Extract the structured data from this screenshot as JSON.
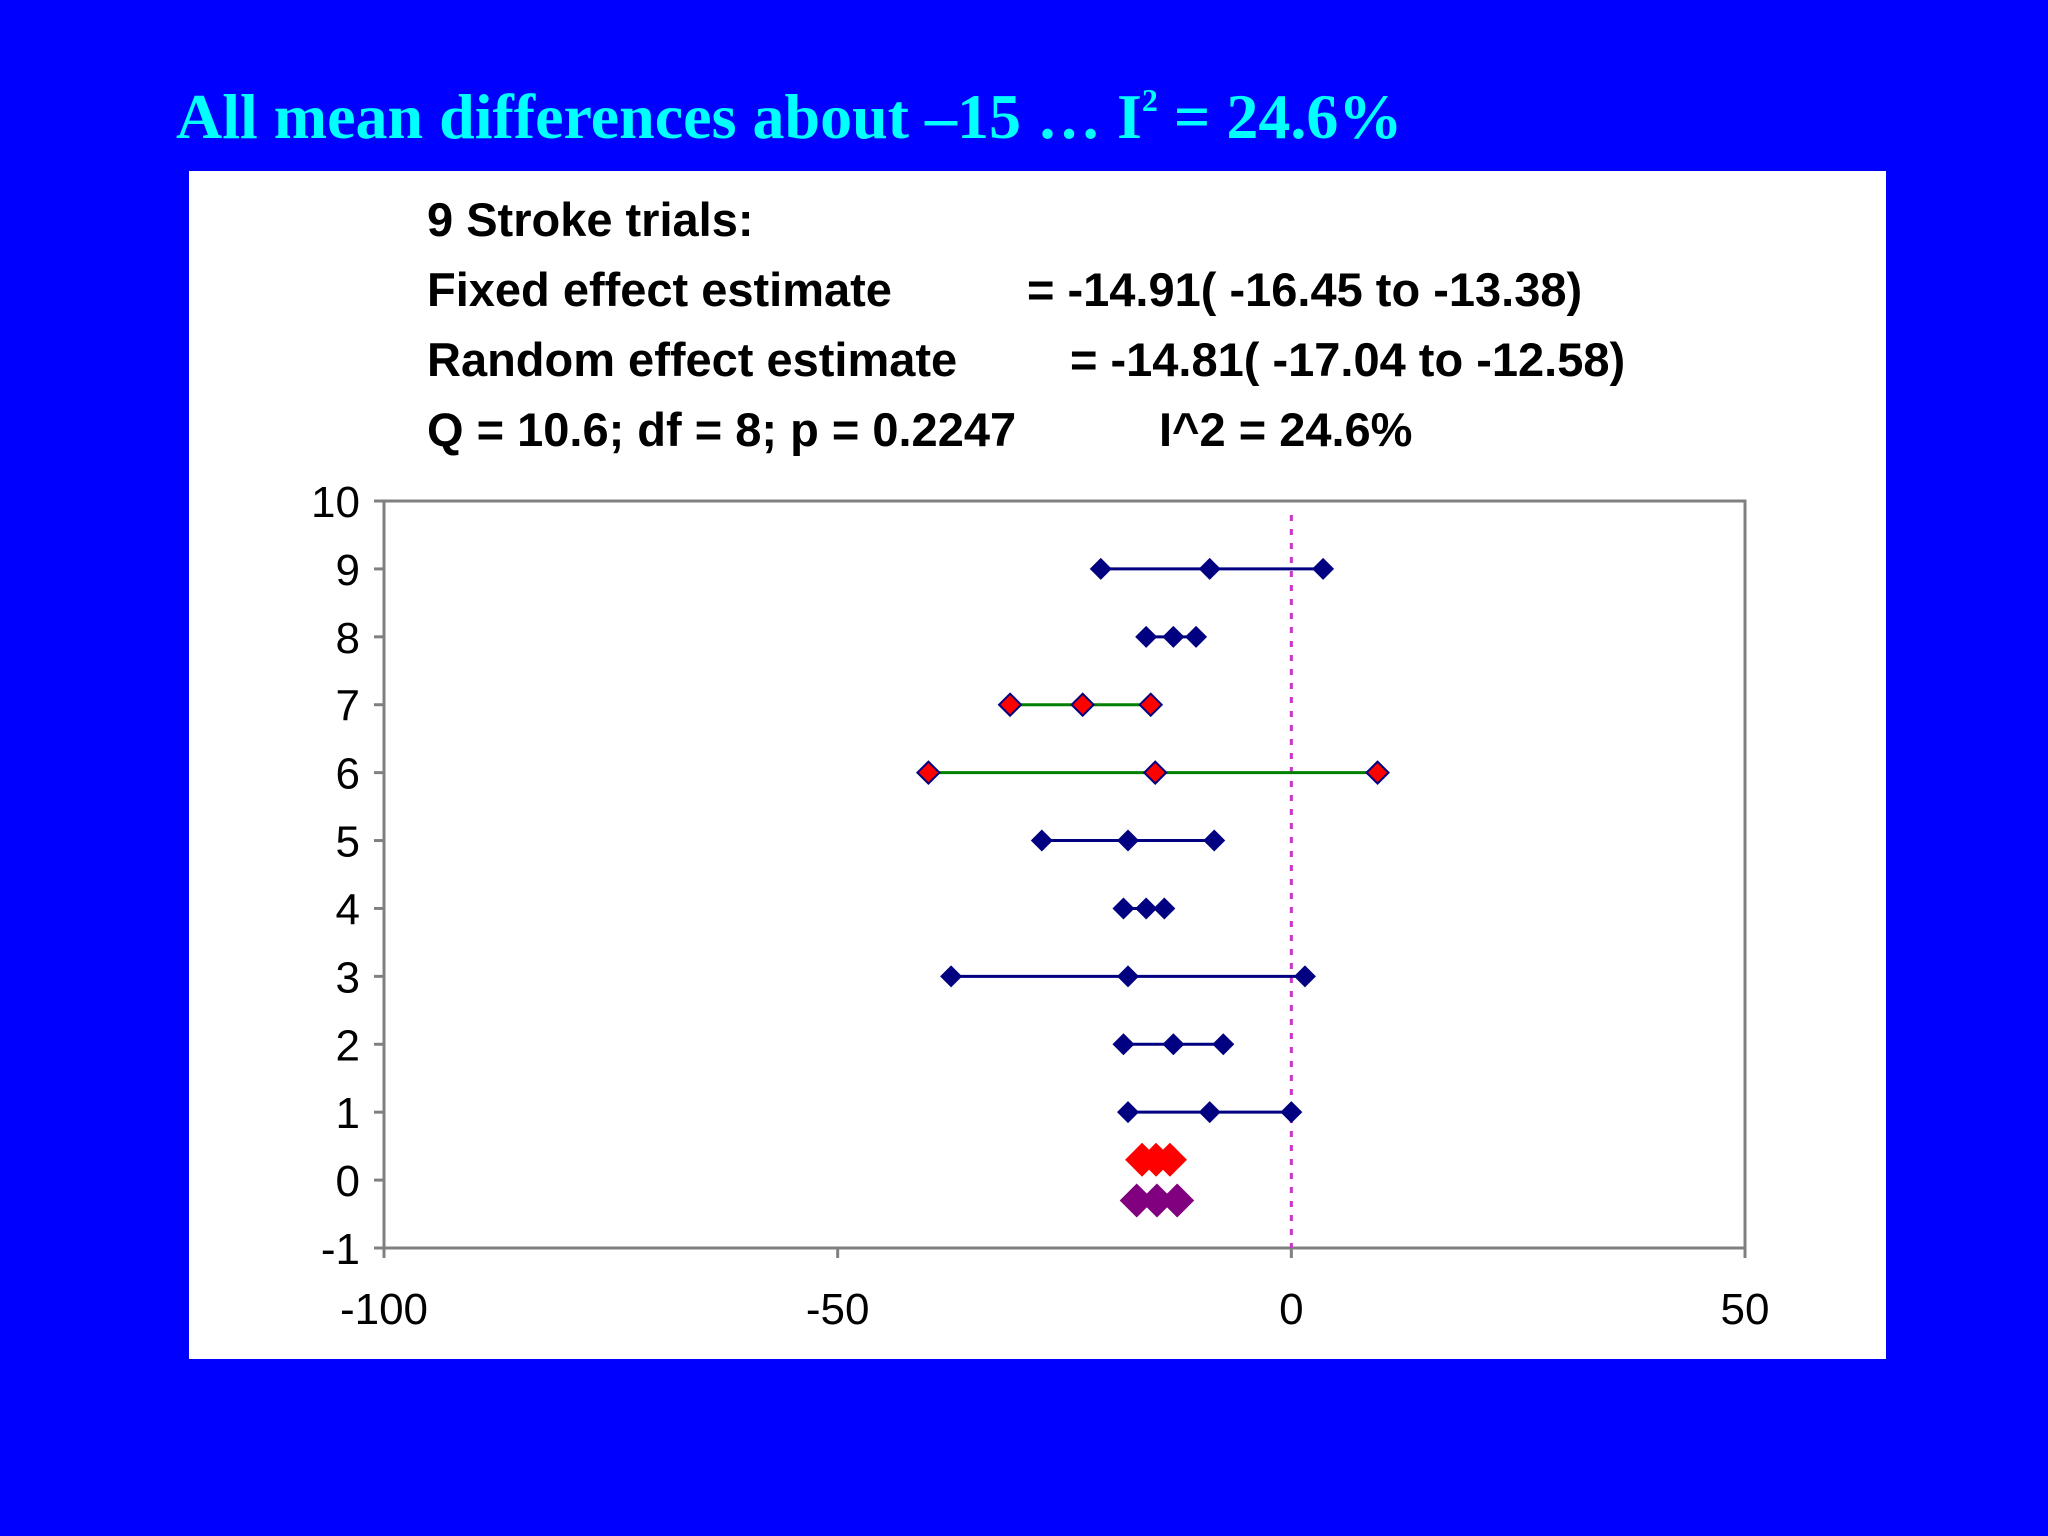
{
  "slide": {
    "title_main": "All mean differences about –15 …  I",
    "title_sup": "2",
    "title_tail": " = 24.6%",
    "background_color": "#0000ff",
    "title_color": "#00ffff"
  },
  "stats": {
    "heading": "9 Stroke trials:",
    "fixed_label": "Fixed effect estimate",
    "fixed_value": "= -14.91( -16.45 to -13.38)",
    "random_label": "Random effect estimate",
    "random_value": "= -14.81( -17.04 to -12.58)",
    "heterogeneity": "Q = 10.6; df = 8; p = 0.2247",
    "i2": "I^2 = 24.6%"
  },
  "chart_data": {
    "type": "scatter",
    "title": "",
    "xlabel": "",
    "ylabel": "",
    "xlim": [
      -100,
      50
    ],
    "ylim": [
      -1,
      10
    ],
    "x_ticks": [
      "-100",
      "-50",
      "0",
      "50"
    ],
    "y_ticks": [
      "10",
      "9",
      "8",
      "7",
      "6",
      "5",
      "4",
      "3",
      "2",
      "1",
      "0",
      "-1"
    ],
    "grid": false,
    "legend": "none",
    "reference_line": {
      "x": 0,
      "style": "dotted",
      "color": "#cc33cc"
    },
    "trials": [
      {
        "y": 1,
        "low": -18,
        "mean": -9,
        "high": 0,
        "color": "#000080"
      },
      {
        "y": 2,
        "low": -18.5,
        "mean": -13,
        "high": -7.5,
        "color": "#000080"
      },
      {
        "y": 3,
        "low": -37.5,
        "mean": -18,
        "high": 1.5,
        "color": "#000080"
      },
      {
        "y": 4,
        "low": -18.5,
        "mean": -16,
        "high": -14,
        "color": "#000080"
      },
      {
        "y": 5,
        "low": -27.5,
        "mean": -18,
        "high": -8.5,
        "color": "#000080"
      },
      {
        "y": 6,
        "low": -40,
        "mean": -15,
        "high": 9.5,
        "color": "#008000",
        "marker_fill": "#ff0000"
      },
      {
        "y": 7,
        "low": -31,
        "mean": -23,
        "high": -15.5,
        "color": "#008000",
        "marker_fill": "#ff0000"
      },
      {
        "y": 8,
        "low": -16,
        "mean": -13,
        "high": -10.5,
        "color": "#000080"
      },
      {
        "y": 9,
        "low": -21,
        "mean": -9,
        "high": 3.5,
        "color": "#000080"
      }
    ],
    "pooled": [
      {
        "name": "Fixed effect estimate",
        "y": 0.3,
        "low": -16.45,
        "mean": -14.91,
        "high": -13.38,
        "color": "#ff0000"
      },
      {
        "name": "Random effect estimate",
        "y": -0.3,
        "low": -17.04,
        "mean": -14.81,
        "high": -12.58,
        "color": "#800080"
      }
    ],
    "axis_color": "#808080"
  }
}
